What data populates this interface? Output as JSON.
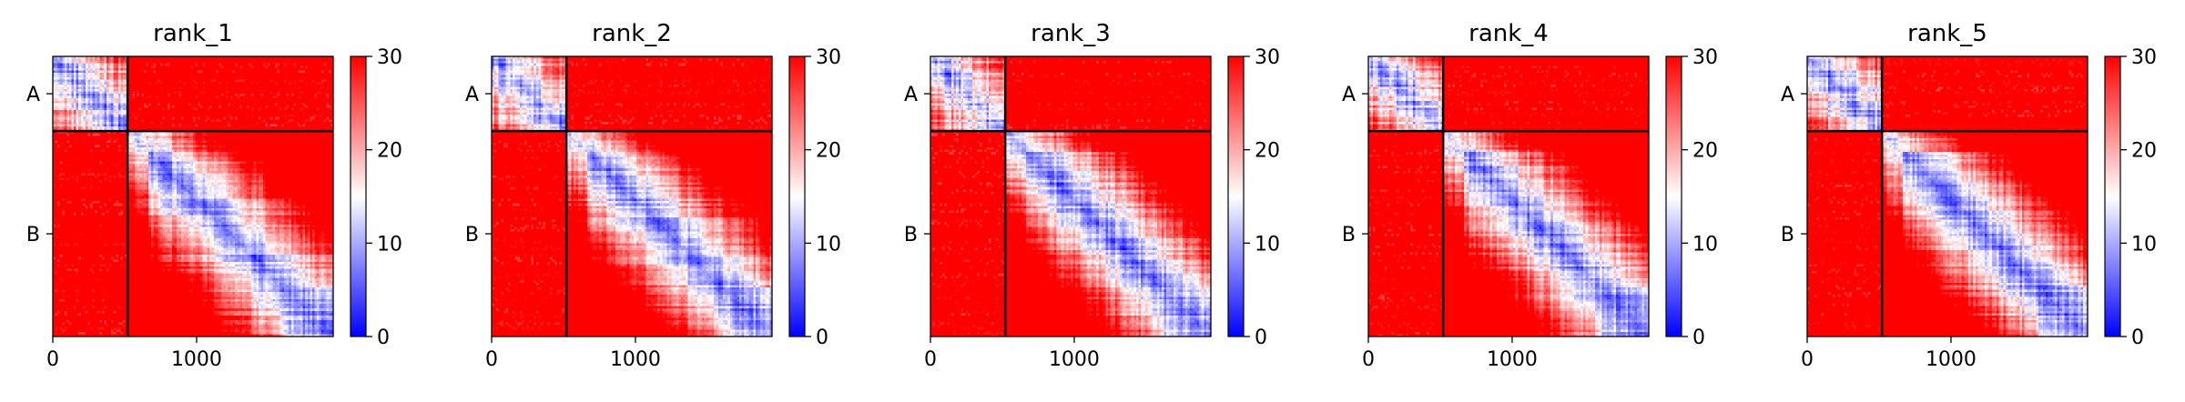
{
  "figure": {
    "panels": [
      "rank_1",
      "rank_2",
      "rank_3",
      "rank_4",
      "rank_5"
    ]
  },
  "chart_data": [
    {
      "type": "heatmap",
      "title": "rank_1",
      "xlabel": "",
      "ylabel": "",
      "x_ticks": [
        0,
        1000
      ],
      "y_ticks": [
        "A",
        "B"
      ],
      "xlim": [
        0,
        1950
      ],
      "chain_boundary": 520,
      "chains": [
        {
          "name": "A",
          "start": 0,
          "end": 520
        },
        {
          "name": "B",
          "start": 520,
          "end": 1950
        }
      ],
      "colorbar": {
        "min": 0,
        "max": 30,
        "ticks": [
          0,
          10,
          20,
          30
        ],
        "colors": [
          "#0000ff",
          "#ffffff",
          "#ff0000"
        ]
      },
      "description_values": {
        "intra_chain_low": 5,
        "inter_chain": 30
      }
    },
    {
      "type": "heatmap",
      "title": "rank_2",
      "xlabel": "",
      "ylabel": "",
      "x_ticks": [
        0,
        1000
      ],
      "y_ticks": [
        "A",
        "B"
      ],
      "xlim": [
        0,
        1950
      ],
      "chain_boundary": 520,
      "chains": [
        {
          "name": "A",
          "start": 0,
          "end": 520
        },
        {
          "name": "B",
          "start": 520,
          "end": 1950
        }
      ],
      "colorbar": {
        "min": 0,
        "max": 30,
        "ticks": [
          0,
          10,
          20,
          30
        ],
        "colors": [
          "#0000ff",
          "#ffffff",
          "#ff0000"
        ]
      },
      "description_values": {
        "intra_chain_low": 5,
        "inter_chain": 30
      }
    },
    {
      "type": "heatmap",
      "title": "rank_3",
      "xlabel": "",
      "ylabel": "",
      "x_ticks": [
        0,
        1000
      ],
      "y_ticks": [
        "A",
        "B"
      ],
      "xlim": [
        0,
        1950
      ],
      "chain_boundary": 520,
      "chains": [
        {
          "name": "A",
          "start": 0,
          "end": 520
        },
        {
          "name": "B",
          "start": 520,
          "end": 1950
        }
      ],
      "colorbar": {
        "min": 0,
        "max": 30,
        "ticks": [
          0,
          10,
          20,
          30
        ],
        "colors": [
          "#0000ff",
          "#ffffff",
          "#ff0000"
        ]
      },
      "description_values": {
        "intra_chain_low": 5,
        "inter_chain": 30
      }
    },
    {
      "type": "heatmap",
      "title": "rank_4",
      "xlabel": "",
      "ylabel": "",
      "x_ticks": [
        0,
        1000
      ],
      "y_ticks": [
        "A",
        "B"
      ],
      "xlim": [
        0,
        1950
      ],
      "chain_boundary": 520,
      "chains": [
        {
          "name": "A",
          "start": 0,
          "end": 520
        },
        {
          "name": "B",
          "start": 520,
          "end": 1950
        }
      ],
      "colorbar": {
        "min": 0,
        "max": 30,
        "ticks": [
          0,
          10,
          20,
          30
        ],
        "colors": [
          "#0000ff",
          "#ffffff",
          "#ff0000"
        ]
      },
      "description_values": {
        "intra_chain_low": 5,
        "inter_chain": 30
      }
    },
    {
      "type": "heatmap",
      "title": "rank_5",
      "xlabel": "",
      "ylabel": "",
      "x_ticks": [
        0,
        1000
      ],
      "y_ticks": [
        "A",
        "B"
      ],
      "xlim": [
        0,
        1950
      ],
      "chain_boundary": 520,
      "chains": [
        {
          "name": "A",
          "start": 0,
          "end": 520
        },
        {
          "name": "B",
          "start": 520,
          "end": 1950
        }
      ],
      "colorbar": {
        "min": 0,
        "max": 30,
        "ticks": [
          0,
          10,
          20,
          30
        ],
        "colors": [
          "#0000ff",
          "#ffffff",
          "#ff0000"
        ]
      },
      "description_values": {
        "intra_chain_low": 5,
        "inter_chain": 30
      }
    }
  ]
}
